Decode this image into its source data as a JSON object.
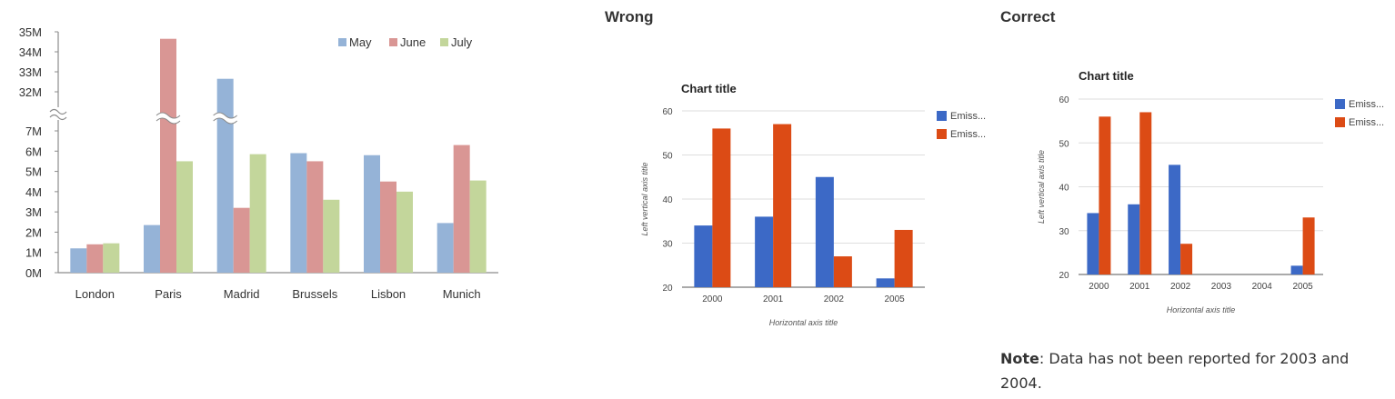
{
  "headings": {
    "wrong": "Wrong",
    "correct": "Correct"
  },
  "note": {
    "label": "Note",
    "text": ": Data has not been reported for 2003 and 2004."
  },
  "colors": {
    "may": "#95b3d7",
    "june": "#d99694",
    "july": "#c3d69b",
    "emission_a": "#3c69c6",
    "emission_b": "#dc4b15",
    "grid": "#dedede",
    "axis": "#8c8c8c",
    "text": "#333333"
  },
  "chart_data": [
    {
      "type": "bar",
      "title": "",
      "xlabel": "",
      "ylabel": "",
      "axis_break": {
        "lower": [
          0,
          7000000
        ],
        "upper": [
          32000000,
          35000000
        ]
      },
      "y_tick_labels_lower": [
        "0M",
        "1M",
        "2M",
        "3M",
        "4M",
        "5M",
        "6M",
        "7M"
      ],
      "y_tick_labels_upper": [
        "32M",
        "33M",
        "34M",
        "35M"
      ],
      "categories": [
        "London",
        "Paris",
        "Madrid",
        "Brussels",
        "Lisbon",
        "Munich"
      ],
      "series": [
        {
          "name": "May",
          "values": [
            1200000,
            2350000,
            32650000,
            5900000,
            5800000,
            2450000
          ]
        },
        {
          "name": "June",
          "values": [
            1400000,
            34650000,
            3200000,
            5500000,
            4500000,
            6300000
          ]
        },
        {
          "name": "July",
          "values": [
            1450000,
            5500000,
            5850000,
            3600000,
            4000000,
            4550000
          ]
        }
      ],
      "legend": "top-right"
    },
    {
      "type": "bar",
      "title": "Chart title",
      "xlabel": "Horizontal axis title",
      "ylabel": "Left vertical axis title",
      "ylim": [
        20,
        60
      ],
      "y_ticks": [
        20,
        30,
        40,
        50,
        60
      ],
      "categories": [
        "2000",
        "2001",
        "2002",
        "2005"
      ],
      "series": [
        {
          "name": "Emiss...",
          "values": [
            34,
            36,
            45,
            22
          ]
        },
        {
          "name": "Emiss...",
          "values": [
            56,
            57,
            27,
            33
          ]
        }
      ],
      "legend": "right"
    },
    {
      "type": "bar",
      "title": "Chart title",
      "xlabel": "Horizontal axis title",
      "ylabel": "Left vertical axis title",
      "ylim": [
        20,
        60
      ],
      "y_ticks": [
        20,
        30,
        40,
        50,
        60
      ],
      "categories": [
        "2000",
        "2001",
        "2002",
        "2003",
        "2004",
        "2005"
      ],
      "series": [
        {
          "name": "Emiss...",
          "values": [
            34,
            36,
            45,
            null,
            null,
            22
          ]
        },
        {
          "name": "Emiss...",
          "values": [
            56,
            57,
            27,
            null,
            null,
            33
          ]
        }
      ],
      "legend": "right"
    }
  ]
}
